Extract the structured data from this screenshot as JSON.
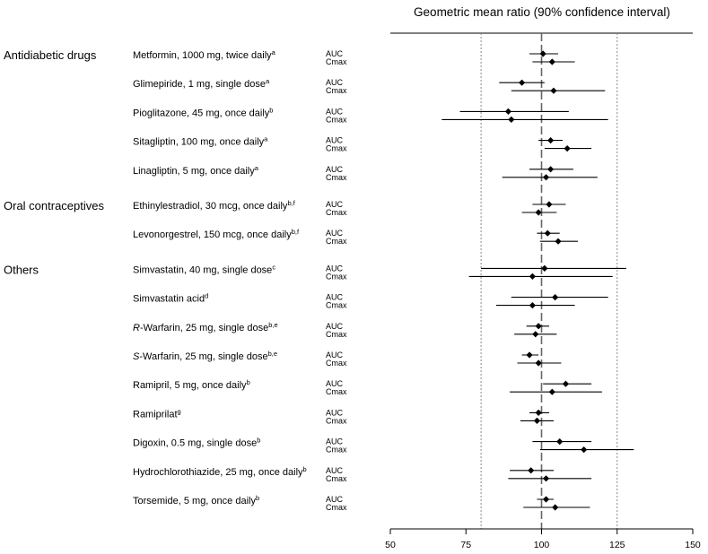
{
  "chart_data": {
    "type": "forest",
    "title": "Geometric mean ratio (90% confidence interval)",
    "xlim": [
      50,
      150
    ],
    "x_ticks": [
      50,
      75,
      100,
      125,
      150
    ],
    "reference_lines": [
      {
        "value": 100,
        "style": "dashed"
      },
      {
        "value": 80,
        "style": "dotted"
      },
      {
        "value": 125,
        "style": "dotted"
      }
    ],
    "groups": [
      {
        "name": "Antidiabetic drugs",
        "drugs": [
          {
            "label": "Metformin, 1000 mg, twice daily",
            "footnote": "a",
            "AUC": {
              "estimate": 100.5,
              "lower": 96.0,
              "upper": 105.5
            },
            "Cmax": {
              "estimate": 103.5,
              "lower": 97.0,
              "upper": 111.0
            }
          },
          {
            "label": "Glimepiride, 1 mg, single dose",
            "footnote": "a",
            "AUC": {
              "estimate": 93.5,
              "lower": 86.0,
              "upper": 101.0
            },
            "Cmax": {
              "estimate": 104.0,
              "lower": 90.0,
              "upper": 121.0
            }
          },
          {
            "label": "Pioglitazone, 45 mg, once daily",
            "footnote": "b",
            "AUC": {
              "estimate": 89.0,
              "lower": 73.0,
              "upper": 109.0
            },
            "Cmax": {
              "estimate": 90.0,
              "lower": 67.0,
              "upper": 122.0
            }
          },
          {
            "label": "Sitagliptin, 100 mg, once daily",
            "footnote": "a",
            "AUC": {
              "estimate": 103.0,
              "lower": 99.0,
              "upper": 107.0
            },
            "Cmax": {
              "estimate": 108.5,
              "lower": 101.0,
              "upper": 116.5
            }
          },
          {
            "label": "Linagliptin, 5 mg, once daily",
            "footnote": "a",
            "AUC": {
              "estimate": 103.0,
              "lower": 96.0,
              "upper": 110.5
            },
            "Cmax": {
              "estimate": 101.5,
              "lower": 87.0,
              "upper": 118.5
            }
          }
        ]
      },
      {
        "name": "Oral contraceptives",
        "drugs": [
          {
            "label": "Ethinylestradiol, 30 mcg, once daily",
            "footnote": "b,f",
            "AUC": {
              "estimate": 102.5,
              "lower": 97.0,
              "upper": 108.0
            },
            "Cmax": {
              "estimate": 99.0,
              "lower": 93.5,
              "upper": 105.0
            }
          },
          {
            "label": "Levonorgestrel, 150 mcg, once daily",
            "footnote": "b,f",
            "AUC": {
              "estimate": 102.0,
              "lower": 98.5,
              "upper": 106.0
            },
            "Cmax": {
              "estimate": 105.5,
              "lower": 99.5,
              "upper": 112.0
            }
          }
        ]
      },
      {
        "name": "Others",
        "drugs": [
          {
            "label": "Simvastatin, 40 mg, single dose",
            "footnote": "c",
            "AUC": {
              "estimate": 101.0,
              "lower": 80.0,
              "upper": 128.0
            },
            "Cmax": {
              "estimate": 97.0,
              "lower": 76.0,
              "upper": 123.5
            }
          },
          {
            "label": "Simvastatin acid",
            "footnote": "d",
            "AUC": {
              "estimate": 104.5,
              "lower": 90.0,
              "upper": 122.0
            },
            "Cmax": {
              "estimate": 97.0,
              "lower": 85.0,
              "upper": 111.0
            }
          },
          {
            "label": "R-Warfarin, 25 mg, single dose",
            "footnote": "b,e",
            "italic_prefix": "R",
            "AUC": {
              "estimate": 99.0,
              "lower": 95.0,
              "upper": 102.5
            },
            "Cmax": {
              "estimate": 98.0,
              "lower": 91.0,
              "upper": 105.0
            }
          },
          {
            "label": "S-Warfarin, 25 mg, single dose",
            "footnote": "b,e",
            "italic_prefix": "S",
            "AUC": {
              "estimate": 96.0,
              "lower": 93.5,
              "upper": 99.0
            },
            "Cmax": {
              "estimate": 99.0,
              "lower": 92.0,
              "upper": 106.5
            }
          },
          {
            "label": "Ramipril, 5 mg, once daily",
            "footnote": "b",
            "AUC": {
              "estimate": 108.0,
              "lower": 100.5,
              "upper": 116.5
            },
            "Cmax": {
              "estimate": 103.5,
              "lower": 89.5,
              "upper": 120.0
            }
          },
          {
            "label": "Ramiprilat",
            "footnote": "g",
            "AUC": {
              "estimate": 99.0,
              "lower": 96.0,
              "upper": 102.5
            },
            "Cmax": {
              "estimate": 98.5,
              "lower": 93.0,
              "upper": 104.0
            }
          },
          {
            "label": "Digoxin, 0.5 mg, single dose",
            "footnote": "b",
            "AUC": {
              "estimate": 106.0,
              "lower": 97.0,
              "upper": 116.5
            },
            "Cmax": {
              "estimate": 114.0,
              "lower": 99.5,
              "upper": 130.5
            }
          },
          {
            "label": "Hydrochlorothiazide, 25 mg, once daily",
            "footnote": "b",
            "AUC": {
              "estimate": 96.5,
              "lower": 89.5,
              "upper": 104.0
            },
            "Cmax": {
              "estimate": 101.5,
              "lower": 89.0,
              "upper": 116.5
            }
          },
          {
            "label": "Torsemide, 5 mg, once daily",
            "footnote": "b",
            "AUC": {
              "estimate": 101.5,
              "lower": 98.5,
              "upper": 104.0
            },
            "Cmax": {
              "estimate": 104.5,
              "lower": 94.0,
              "upper": 116.0
            }
          }
        ]
      }
    ],
    "metric_labels": [
      "AUC",
      "Cmax"
    ]
  }
}
